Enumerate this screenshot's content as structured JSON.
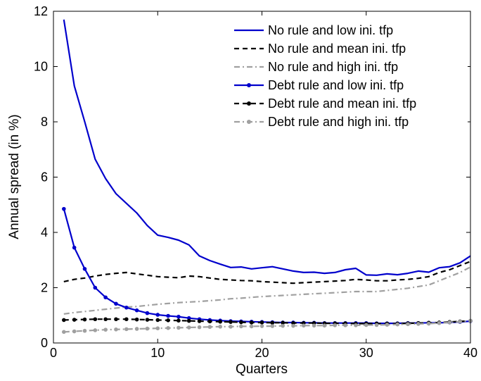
{
  "chart_data": {
    "type": "line",
    "title": "",
    "xlabel": "Quarters",
    "ylabel": "Annual spread (in %)",
    "xlim": [
      0,
      40
    ],
    "ylim": [
      0,
      12
    ],
    "xticks": [
      0,
      10,
      20,
      30,
      40
    ],
    "yticks": [
      0,
      2,
      4,
      6,
      8,
      10,
      12
    ],
    "grid": false,
    "legend_position": "top-right",
    "x": [
      1,
      2,
      3,
      4,
      5,
      6,
      7,
      8,
      9,
      10,
      11,
      12,
      13,
      14,
      15,
      16,
      17,
      18,
      19,
      20,
      21,
      22,
      23,
      24,
      25,
      26,
      27,
      28,
      29,
      30,
      31,
      32,
      33,
      34,
      35,
      36,
      37,
      38,
      39,
      40
    ],
    "series": [
      {
        "name": "No rule and low ini. tfp",
        "color": "#0000cc",
        "style": "solid",
        "marker": false,
        "values": [
          11.7,
          9.3,
          8.0,
          6.65,
          5.95,
          5.4,
          5.05,
          4.7,
          4.25,
          3.9,
          3.82,
          3.72,
          3.55,
          3.15,
          2.98,
          2.85,
          2.73,
          2.75,
          2.68,
          2.72,
          2.76,
          2.68,
          2.6,
          2.55,
          2.56,
          2.52,
          2.55,
          2.65,
          2.7,
          2.46,
          2.45,
          2.5,
          2.47,
          2.52,
          2.6,
          2.56,
          2.72,
          2.76,
          2.9,
          3.15
        ]
      },
      {
        "name": "No rule and mean ini. tfp",
        "color": "#000000",
        "style": "dashed",
        "marker": false,
        "values": [
          2.22,
          2.3,
          2.35,
          2.42,
          2.48,
          2.52,
          2.55,
          2.5,
          2.45,
          2.4,
          2.38,
          2.36,
          2.42,
          2.4,
          2.35,
          2.3,
          2.28,
          2.26,
          2.25,
          2.22,
          2.2,
          2.18,
          2.16,
          2.18,
          2.2,
          2.22,
          2.24,
          2.26,
          2.3,
          2.28,
          2.25,
          2.25,
          2.28,
          2.3,
          2.34,
          2.4,
          2.55,
          2.65,
          2.8,
          2.95
        ]
      },
      {
        "name": "No rule and high ini. tfp",
        "color": "#a0a0a0",
        "style": "dashdot",
        "marker": false,
        "values": [
          1.05,
          1.1,
          1.14,
          1.18,
          1.22,
          1.26,
          1.3,
          1.32,
          1.36,
          1.4,
          1.43,
          1.46,
          1.48,
          1.5,
          1.53,
          1.56,
          1.6,
          1.62,
          1.65,
          1.68,
          1.7,
          1.72,
          1.74,
          1.76,
          1.78,
          1.8,
          1.82,
          1.84,
          1.86,
          1.86,
          1.86,
          1.9,
          1.94,
          1.98,
          2.04,
          2.1,
          2.25,
          2.4,
          2.55,
          2.75
        ]
      },
      {
        "name": "Debt rule and low ini. tfp",
        "color": "#0000cc",
        "style": "solid",
        "marker": true,
        "values": [
          4.85,
          3.45,
          2.68,
          2.0,
          1.65,
          1.42,
          1.28,
          1.18,
          1.08,
          1.02,
          0.98,
          0.95,
          0.9,
          0.86,
          0.83,
          0.81,
          0.79,
          0.78,
          0.77,
          0.76,
          0.75,
          0.74,
          0.74,
          0.73,
          0.73,
          0.72,
          0.72,
          0.72,
          0.72,
          0.72,
          0.71,
          0.71,
          0.71,
          0.72,
          0.72,
          0.73,
          0.73,
          0.74,
          0.76,
          0.79
        ]
      },
      {
        "name": "Debt rule and mean ini. tfp",
        "color": "#000000",
        "style": "dashed",
        "marker": true,
        "values": [
          0.83,
          0.84,
          0.85,
          0.86,
          0.86,
          0.86,
          0.86,
          0.85,
          0.84,
          0.83,
          0.82,
          0.81,
          0.8,
          0.79,
          0.78,
          0.77,
          0.76,
          0.75,
          0.74,
          0.74,
          0.73,
          0.73,
          0.72,
          0.72,
          0.72,
          0.71,
          0.71,
          0.71,
          0.7,
          0.7,
          0.7,
          0.7,
          0.7,
          0.71,
          0.72,
          0.73,
          0.74,
          0.76,
          0.78,
          0.8
        ]
      },
      {
        "name": "Debt rule and high ini. tfp",
        "color": "#a0a0a0",
        "style": "dashdot",
        "marker": true,
        "values": [
          0.4,
          0.42,
          0.44,
          0.46,
          0.48,
          0.49,
          0.5,
          0.51,
          0.52,
          0.53,
          0.54,
          0.55,
          0.56,
          0.57,
          0.58,
          0.59,
          0.59,
          0.6,
          0.6,
          0.61,
          0.61,
          0.62,
          0.62,
          0.63,
          0.63,
          0.63,
          0.64,
          0.64,
          0.64,
          0.65,
          0.65,
          0.66,
          0.67,
          0.68,
          0.69,
          0.7,
          0.72,
          0.74,
          0.77,
          0.8
        ]
      }
    ]
  }
}
